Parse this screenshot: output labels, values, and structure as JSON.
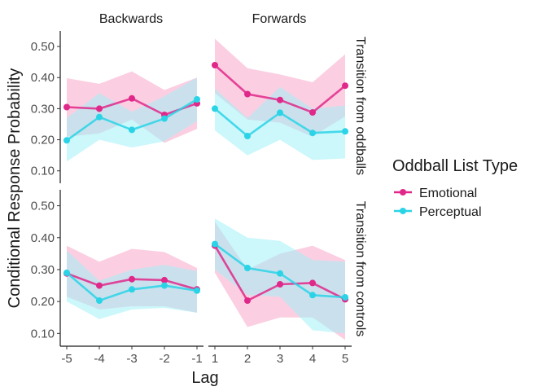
{
  "chart_data": {
    "type": "line",
    "ylabel": "Conditional Response Probability",
    "xlabel": "Lag",
    "legend": {
      "title": "Oddball List Type",
      "position": "right",
      "entries": [
        {
          "label": "Emotional",
          "color": "#e0288a"
        },
        {
          "label": "Perceptual",
          "color": "#2ad4e6"
        }
      ]
    },
    "facet_cols": [
      "Backwards",
      "Forwards"
    ],
    "facet_rows": [
      "Transition from oddballs",
      "Transition from controls"
    ],
    "x_ticks": {
      "Backwards": [
        "-5",
        "-4",
        "-3",
        "-2",
        "-1"
      ],
      "Forwards": [
        "1",
        "2",
        "3",
        "4",
        "5"
      ]
    },
    "x_values": {
      "Backwards": [
        -5,
        -4,
        -3,
        -2,
        -1
      ],
      "Forwards": [
        1,
        2,
        3,
        4,
        5
      ]
    },
    "ylim": [
      0.06,
      0.55
    ],
    "y_ticks": [
      "0.10",
      "0.20",
      "0.30",
      "0.40",
      "0.50"
    ],
    "y_tick_values": [
      0.1,
      0.2,
      0.3,
      0.4,
      0.5
    ],
    "grid": false,
    "band_colors": {
      "Emotional": "#f7a8c8",
      "Perceptual": "#a3f0f7",
      "overlap": "#c8cde0"
    },
    "panels": [
      {
        "row": "Transition from oddballs",
        "col": "Backwards",
        "series": [
          {
            "name": "Emotional",
            "mean": [
              0.305,
              0.3,
              0.333,
              0.28,
              0.317
            ],
            "lower": [
              0.21,
              0.22,
              0.265,
              0.19,
              0.235
            ],
            "upper": [
              0.398,
              0.38,
              0.42,
              0.36,
              0.4
            ]
          },
          {
            "name": "Perceptual",
            "mean": [
              0.198,
              0.273,
              0.232,
              0.268,
              0.33
            ],
            "lower": [
              0.13,
              0.2,
              0.175,
              0.195,
              0.26
            ],
            "upper": [
              0.27,
              0.35,
              0.29,
              0.34,
              0.4
            ]
          }
        ]
      },
      {
        "row": "Transition from oddballs",
        "col": "Forwards",
        "series": [
          {
            "name": "Emotional",
            "mean": [
              0.44,
              0.347,
              0.328,
              0.288,
              0.374
            ],
            "lower": [
              0.35,
              0.265,
              0.255,
              0.21,
              0.275
            ],
            "upper": [
              0.525,
              0.43,
              0.41,
              0.385,
              0.475
            ]
          },
          {
            "name": "Perceptual",
            "mean": [
              0.3,
              0.212,
              0.287,
              0.222,
              0.227
            ],
            "lower": [
              0.23,
              0.15,
              0.2,
              0.135,
              0.14
            ],
            "upper": [
              0.365,
              0.27,
              0.37,
              0.3,
              0.31
            ]
          }
        ]
      },
      {
        "row": "Transition from controls",
        "col": "Backwards",
        "series": [
          {
            "name": "Emotional",
            "mean": [
              0.288,
              0.25,
              0.27,
              0.267,
              0.238
            ],
            "lower": [
              0.215,
              0.175,
              0.185,
              0.185,
              0.165
            ],
            "upper": [
              0.375,
              0.325,
              0.365,
              0.355,
              0.305
            ]
          },
          {
            "name": "Perceptual",
            "mean": [
              0.29,
              0.203,
              0.238,
              0.25,
              0.234
            ],
            "lower": [
              0.2,
              0.145,
              0.175,
              0.18,
              0.165
            ],
            "upper": [
              0.36,
              0.265,
              0.3,
              0.315,
              0.295
            ]
          }
        ]
      },
      {
        "row": "Transition from controls",
        "col": "Forwards",
        "series": [
          {
            "name": "Emotional",
            "mean": [
              0.375,
              0.203,
              0.254,
              0.258,
              0.207
            ],
            "lower": [
              0.29,
              0.12,
              0.15,
              0.15,
              0.08
            ],
            "upper": [
              0.45,
              0.3,
              0.35,
              0.375,
              0.33
            ]
          },
          {
            "name": "Perceptual",
            "mean": [
              0.38,
              0.305,
              0.288,
              0.22,
              0.213
            ],
            "lower": [
              0.3,
              0.22,
              0.215,
              0.11,
              0.1
            ],
            "upper": [
              0.46,
              0.4,
              0.39,
              0.33,
              0.325
            ]
          }
        ]
      }
    ]
  }
}
